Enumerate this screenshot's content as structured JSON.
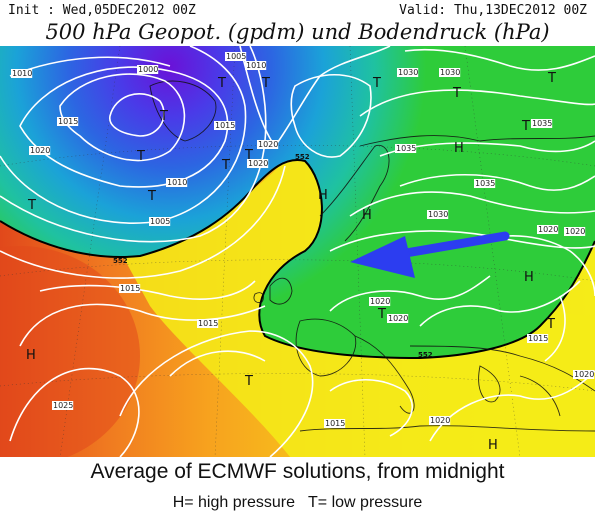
{
  "header": {
    "init": "Init : Wed,05DEC2012 00Z",
    "valid": "Valid: Thu,13DEC2012 00Z",
    "title": "500 hPa Geopot. (gpdm) und Bodendruck (hPa)"
  },
  "caption": {
    "line1": "Average of ECMWF solutions, from midnight",
    "line2": "H= high pressure   T= low pressure"
  },
  "map": {
    "colors": {
      "deep_low": "#6a12d8",
      "low": "#2850e0",
      "mid_cool": "#1bb4d6",
      "green": "#2ecc3a",
      "yellow": "#f5ec18",
      "orange": "#f7a21e",
      "red": "#e1481b",
      "arrow": "#2c3df0",
      "isobar": "#ffffff",
      "contour_552": "#000000"
    },
    "contour_labels": [
      "552",
      "552",
      "552"
    ],
    "isobar_labels": [
      "1010",
      "1000",
      "1005",
      "1010",
      "1015",
      "1030",
      "1030",
      "1015",
      "1020",
      "1010",
      "1020",
      "1035",
      "1035",
      "1035",
      "1020",
      "1005",
      "1030",
      "1020",
      "1015",
      "1015",
      "1020",
      "1020",
      "1015",
      "1025",
      "1015",
      "1020",
      "1020",
      "1020"
    ],
    "symbols": [
      "T",
      "T",
      "T",
      "T",
      "T",
      "T",
      "T",
      "T",
      "T",
      "H",
      "H",
      "H",
      "H",
      "H",
      "T",
      "T",
      "T",
      "T",
      "H",
      "T",
      "T"
    ]
  }
}
